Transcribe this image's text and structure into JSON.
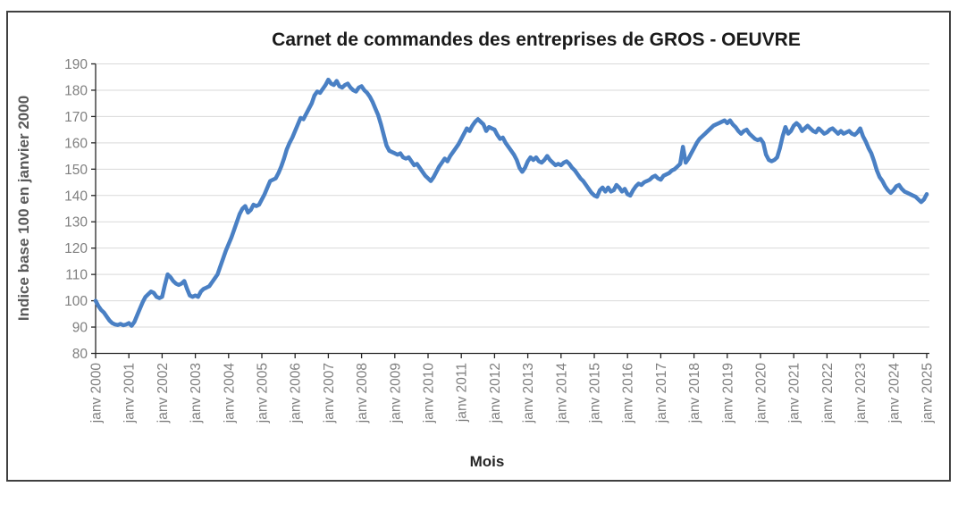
{
  "title": "Carnet de commandes des entreprises de GROS - OEUVRE",
  "chart_data": {
    "type": "line",
    "title": "Carnet de commandes des entreprises de GROS - OEUVRE",
    "xlabel": "Mois",
    "ylabel": "Indice base 100 en janvier 2000",
    "frequency": "monthly",
    "x_range": [
      "janv 2000",
      "janv 2025"
    ],
    "x_tick_labels": [
      "janv 2000",
      "janv 2001",
      "janv 2002",
      "janv 2003",
      "janv 2004",
      "janv 2005",
      "janv 2006",
      "janv 2007",
      "janv 2008",
      "janv 2009",
      "janv 2010",
      "janv 2011",
      "janv 2012",
      "janv 2013",
      "janv 2014",
      "janv 2015",
      "janv 2016",
      "janv 2017",
      "janv 2018",
      "janv 2019",
      "janv 2020",
      "janv 2021",
      "janv 2022",
      "janv 2023",
      "janv 2024",
      "janv 2025"
    ],
    "ylim": [
      80,
      190
    ],
    "y_ticks": [
      80,
      90,
      100,
      110,
      120,
      130,
      140,
      150,
      160,
      170,
      180,
      190
    ],
    "grid": "horizontal",
    "legend_position": "none",
    "series": [
      {
        "color": "#4A80C4",
        "values": [
          100,
          98,
          96.5,
          95.5,
          94,
          92.5,
          91.5,
          91,
          90.8,
          91.2,
          90.7,
          91,
          91.5,
          90.5,
          92,
          94.5,
          97,
          99.5,
          101.5,
          102.5,
          103.5,
          103,
          101.5,
          101,
          101.5,
          106,
          110,
          109,
          107.5,
          106.5,
          106,
          106.5,
          107.5,
          104.5,
          102,
          101.5,
          102,
          101.5,
          103.5,
          104.5,
          105,
          105.5,
          107,
          108.5,
          110,
          113,
          116,
          119,
          121.5,
          124,
          127,
          130,
          133,
          135,
          136,
          133.5,
          134.5,
          136.5,
          136,
          136.5,
          138.5,
          140.5,
          143,
          145.5,
          146,
          146.5,
          148.5,
          151,
          154,
          157.5,
          160,
          162,
          164.5,
          167,
          169.5,
          169,
          171,
          173,
          175,
          178,
          179.5,
          179,
          180.5,
          182,
          184,
          182.5,
          182,
          183.5,
          181.5,
          181,
          182,
          182.5,
          181,
          180,
          179.5,
          181,
          181.5,
          180,
          179,
          177.5,
          175.5,
          173,
          170.5,
          167,
          163,
          159,
          157,
          156.5,
          156,
          155.5,
          156,
          154.5,
          154,
          154.5,
          153,
          151.5,
          152,
          150.5,
          149,
          147.5,
          146.5,
          145.5,
          147,
          149,
          151,
          152.5,
          154,
          153,
          155,
          156.5,
          158,
          159.5,
          161.5,
          163.5,
          165.5,
          164.5,
          166.5,
          168,
          169,
          168,
          167,
          164.5,
          166,
          165.5,
          165,
          163,
          161.5,
          162,
          160,
          158.5,
          157,
          155.5,
          153.5,
          150.5,
          149,
          150.5,
          153,
          154.5,
          153.5,
          154.5,
          153,
          152.5,
          153.5,
          155,
          153.5,
          152.5,
          151.5,
          152,
          151.5,
          152.5,
          153,
          152,
          150.5,
          149.5,
          148,
          146.5,
          145.5,
          144,
          142.5,
          141,
          140,
          139.5,
          142,
          143,
          141.5,
          143,
          141.5,
          142,
          144,
          143,
          141.5,
          142.5,
          140.5,
          140,
          142,
          143.5,
          144.5,
          144,
          145,
          145.5,
          146,
          147,
          147.5,
          146.5,
          146,
          147.5,
          148,
          148.5,
          149.5,
          150,
          151,
          152,
          158.5,
          152.5,
          154,
          156,
          158,
          160,
          161.5,
          162.5,
          163.5,
          164.5,
          165.5,
          166.5,
          167,
          167.5,
          168,
          168.5,
          167.5,
          168.5,
          167,
          166,
          164.5,
          163.5,
          164.5,
          165,
          163.5,
          162.5,
          161.5,
          161,
          161.5,
          160,
          155.5,
          153.5,
          153,
          153.5,
          154.5,
          158,
          162.5,
          166,
          163.5,
          164.5,
          166.5,
          167.5,
          166.5,
          164.5,
          165.5,
          166.5,
          165.5,
          164.5,
          164,
          165.5,
          164.5,
          163.5,
          164,
          165,
          165.5,
          164.5,
          163.5,
          164.5,
          163.5,
          164,
          164.5,
          163.5,
          163,
          164,
          165.5,
          162.5,
          160.5,
          158,
          156,
          153,
          149.5,
          147,
          145.5,
          143.5,
          142,
          141,
          142,
          143.5,
          144,
          142.5,
          141.5,
          141,
          140.5,
          140,
          139.5,
          138.5,
          137.5,
          138.5,
          140.5
        ]
      }
    ]
  },
  "style": {
    "line_color": "#4A80C4",
    "grid_color": "#D9D9D9",
    "axis_color": "#262626",
    "tick_label_color": "#7F7F7F",
    "title_color": "#1A1A1A",
    "x_axis_title_color": "#262626",
    "y_axis_title_color": "#595959",
    "frame_border_color": "#404040",
    "background": "#FFFFFF"
  }
}
